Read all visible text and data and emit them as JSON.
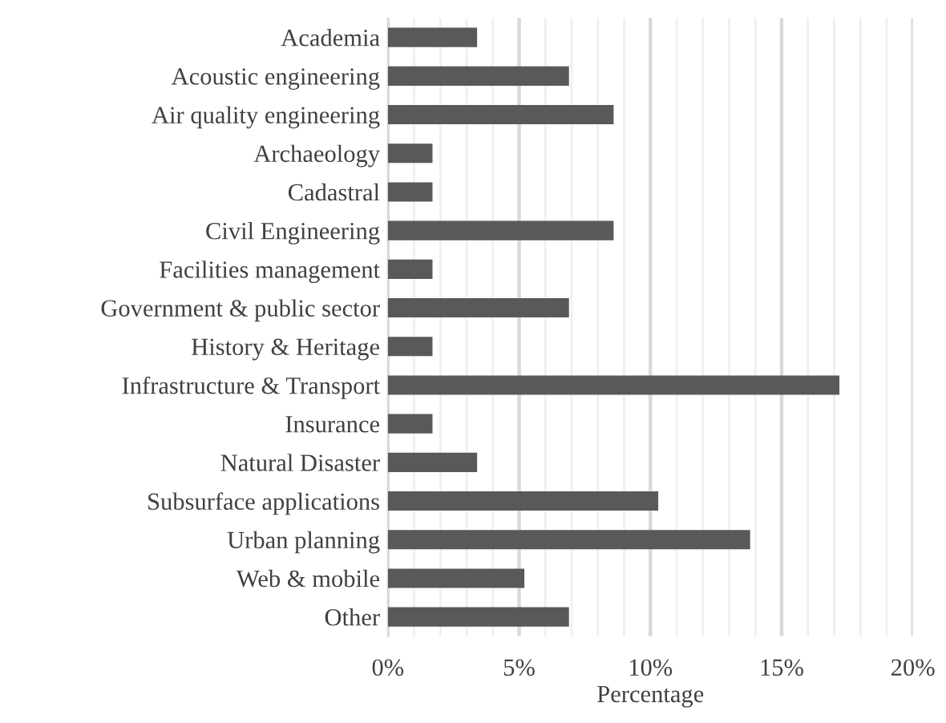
{
  "chart_data": {
    "type": "bar",
    "orientation": "horizontal",
    "xlabel": "Percentage",
    "categories": [
      "Academia",
      "Acoustic engineering",
      "Air quality engineering",
      "Archaeology",
      "Cadastral",
      "Civil Engineering",
      "Facilities management",
      "Government & public sector",
      "History & Heritage",
      "Infrastructure & Transport",
      "Insurance",
      "Natural Disaster",
      "Subsurface applications",
      "Urban planning",
      "Web & mobile",
      "Other"
    ],
    "values": [
      3.4,
      6.9,
      8.6,
      1.7,
      1.7,
      8.6,
      1.7,
      6.9,
      1.7,
      17.2,
      1.7,
      3.4,
      10.3,
      13.8,
      5.2,
      6.9
    ],
    "color": "#595959",
    "xlim": [
      0,
      20
    ],
    "xticks": [
      {
        "value": 0,
        "label": "0%"
      },
      {
        "value": 1,
        "label": null
      },
      {
        "value": 2,
        "label": null
      },
      {
        "value": 3,
        "label": null
      },
      {
        "value": 4,
        "label": null
      },
      {
        "value": 5,
        "label": "5%"
      },
      {
        "value": 6,
        "label": null
      },
      {
        "value": 7,
        "label": null
      },
      {
        "value": 8,
        "label": null
      },
      {
        "value": 9,
        "label": null
      },
      {
        "value": 10,
        "label": "10%"
      },
      {
        "value": 11,
        "label": null
      },
      {
        "value": 12,
        "label": null
      },
      {
        "value": 13,
        "label": null
      },
      {
        "value": 14,
        "label": null
      },
      {
        "value": 15,
        "label": "15%"
      },
      {
        "value": 16,
        "label": null
      },
      {
        "value": 17,
        "label": null
      },
      {
        "value": 18,
        "label": null
      },
      {
        "value": 19,
        "label": null
      },
      {
        "value": 20,
        "label": "20%"
      }
    ],
    "grid": "x",
    "legend": false
  }
}
